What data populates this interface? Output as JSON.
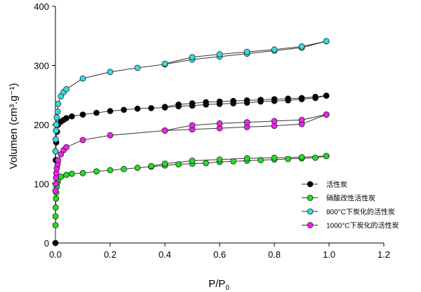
{
  "chart_data": {
    "type": "scatter",
    "title": "",
    "xlabel": "P/P",
    "xlabel_sub": "0",
    "ylabel": "Volumen (cm³.g⁻¹)",
    "xlim": [
      0,
      1.2
    ],
    "ylim": [
      0,
      400
    ],
    "xticks": [
      "0.0",
      "0.2",
      "0.4",
      "0.6",
      "0.8",
      "1.0",
      "1.2"
    ],
    "yticks": [
      "0",
      "100",
      "200",
      "300",
      "400"
    ],
    "grid": false,
    "legend_position": "right",
    "series": [
      {
        "name": "活性炭",
        "color": "#000000",
        "adsorption": {
          "x": [
            0.0001,
            0.001,
            0.003,
            0.006,
            0.01,
            0.02,
            0.03,
            0.04,
            0.06,
            0.1,
            0.15,
            0.2,
            0.25,
            0.3,
            0.35,
            0.4,
            0.45,
            0.5,
            0.55,
            0.6,
            0.65,
            0.7,
            0.75,
            0.8,
            0.85,
            0.9,
            0.95,
            0.99
          ],
          "y": [
            0,
            140,
            170,
            188,
            200,
            205,
            208,
            211,
            214,
            217,
            220,
            223,
            225,
            227,
            228,
            229,
            231,
            232,
            234,
            235,
            236,
            237,
            239,
            240,
            241,
            243,
            245,
            249
          ]
        },
        "desorption": {
          "x": [
            0.99,
            0.95,
            0.9,
            0.85,
            0.8,
            0.75,
            0.7,
            0.65,
            0.6,
            0.55,
            0.5,
            0.45,
            0.4
          ],
          "y": [
            249,
            247,
            245,
            244,
            243,
            242,
            241,
            240,
            239,
            238,
            236,
            234,
            230
          ]
        }
      },
      {
        "name": "硝酸改性活性炭",
        "color": "#22dd22",
        "adsorption": {
          "x": [
            0.0001,
            0.0005,
            0.001,
            0.002,
            0.003,
            0.005,
            0.008,
            0.01,
            0.02,
            0.04,
            0.06,
            0.1,
            0.15,
            0.2,
            0.25,
            0.3,
            0.35,
            0.4,
            0.45,
            0.5,
            0.55,
            0.6,
            0.65,
            0.7,
            0.75,
            0.8,
            0.85,
            0.9,
            0.95,
            0.99
          ],
          "y": [
            30,
            45,
            60,
            75,
            85,
            95,
            103,
            108,
            112,
            115,
            117,
            118,
            121,
            123,
            125,
            127,
            129,
            131,
            133,
            134,
            135,
            137,
            138,
            139,
            140,
            141,
            142,
            143,
            144,
            147
          ]
        },
        "desorption": {
          "x": [
            0.99,
            0.9,
            0.8,
            0.7,
            0.6,
            0.5,
            0.4,
            0.35
          ],
          "y": [
            147,
            145,
            144,
            143,
            141,
            139,
            134,
            130
          ]
        }
      },
      {
        "name": "800°C下炭化的活性炭",
        "color": "#33dddd",
        "adsorption": {
          "x": [
            0.0001,
            0.001,
            0.002,
            0.003,
            0.005,
            0.008,
            0.01,
            0.02,
            0.03,
            0.04,
            0.1,
            0.2,
            0.3,
            0.4,
            0.5,
            0.6,
            0.7,
            0.8,
            0.9,
            0.99
          ],
          "y": [
            155,
            175,
            190,
            200,
            212,
            222,
            235,
            248,
            255,
            260,
            278,
            289,
            296,
            302,
            310,
            315,
            320,
            325,
            330,
            341
          ]
        },
        "desorption": {
          "x": [
            0.99,
            0.9,
            0.8,
            0.7,
            0.6,
            0.5,
            0.4
          ],
          "y": [
            341,
            332,
            327,
            323,
            319,
            314,
            303
          ]
        }
      },
      {
        "name": "1000°C下炭化的活性炭",
        "color": "#ee22ee",
        "adsorption": {
          "x": [
            0.0001,
            0.001,
            0.002,
            0.003,
            0.005,
            0.008,
            0.01,
            0.02,
            0.03,
            0.04,
            0.1,
            0.2,
            0.4,
            0.5,
            0.6,
            0.7,
            0.8,
            0.9,
            0.99
          ],
          "y": [
            88,
            100,
            110,
            118,
            126,
            133,
            140,
            150,
            157,
            162,
            174,
            182,
            190,
            192,
            194,
            196,
            198,
            201,
            217
          ]
        },
        "desorption": {
          "x": [
            0.99,
            0.9,
            0.8,
            0.7,
            0.6,
            0.5,
            0.4
          ],
          "y": [
            217,
            208,
            206,
            204,
            202,
            199,
            190
          ]
        }
      }
    ]
  }
}
